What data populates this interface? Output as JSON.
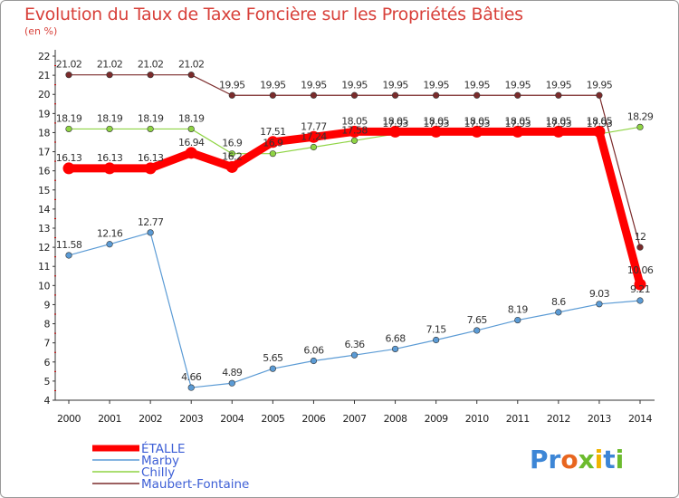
{
  "chart_data": {
    "type": "line",
    "title": "Evolution du Taux de Taxe Foncière sur les Propriétés Bâties",
    "subtitle": "(en %)",
    "xlabel": "",
    "ylabel": "",
    "x": [
      2000,
      2001,
      2002,
      2003,
      2004,
      2005,
      2006,
      2007,
      2008,
      2009,
      2010,
      2011,
      2012,
      2013,
      2014
    ],
    "ylim": [
      4,
      22
    ],
    "yticks": [
      4,
      5,
      6,
      7,
      8,
      9,
      10,
      11,
      12,
      13,
      14,
      15,
      16,
      17,
      18,
      19,
      20,
      21,
      22
    ],
    "series": [
      {
        "name": "ÉTALLE",
        "color": "#ff0000",
        "values": [
          16.13,
          16.13,
          16.13,
          16.94,
          16.2,
          17.51,
          17.77,
          18.05,
          18.05,
          18.05,
          18.05,
          18.05,
          18.05,
          18.05,
          10.06
        ],
        "labels": [
          "16.13",
          "16.13",
          "16.13",
          "16.94",
          "16.2",
          "17.51",
          "17.77",
          "18.05",
          "18.05",
          "18.05",
          "18.05",
          "18.05",
          "18.05",
          "18.05",
          "10.06"
        ]
      },
      {
        "name": "Marby",
        "color": "#5b9bd5",
        "values": [
          11.58,
          12.16,
          12.77,
          4.66,
          4.89,
          5.65,
          6.06,
          6.36,
          6.68,
          7.15,
          7.65,
          8.19,
          8.6,
          9.03,
          9.21
        ],
        "labels": [
          "11.58",
          "12.16",
          "12.77",
          "4.66",
          "4.89",
          "5.65",
          "6.06",
          "6.36",
          "6.68",
          "7.15",
          "7.65",
          "8.19",
          "8.6",
          "9.03",
          "9.21"
        ]
      },
      {
        "name": "Chilly",
        "color": "#8fd444",
        "values": [
          18.19,
          18.19,
          18.19,
          18.19,
          16.9,
          16.9,
          17.24,
          17.58,
          17.93,
          17.93,
          17.93,
          17.93,
          17.93,
          17.93,
          18.29
        ],
        "labels": [
          "18.19",
          "18.19",
          "18.19",
          "18.19",
          "16.9",
          "16.9",
          "17.24",
          "17.58",
          "17.93",
          "17.93",
          "17.93",
          "17.93",
          "17.93",
          "17.93",
          "18.29"
        ]
      },
      {
        "name": "Maubert-Fontaine",
        "color": "#7b2b2b",
        "values": [
          21.02,
          21.02,
          21.02,
          21.02,
          19.95,
          19.95,
          19.95,
          19.95,
          19.95,
          19.95,
          19.95,
          19.95,
          19.95,
          19.95,
          12
        ],
        "labels": [
          "21.02",
          "21.02",
          "21.02",
          "21.02",
          "19.95",
          "19.95",
          "19.95",
          "19.95",
          "19.95",
          "19.95",
          "19.95",
          "19.95",
          "19.95",
          "19.95",
          "12"
        ]
      }
    ],
    "legend": [
      "ÉTALLE",
      "Marby",
      "Chilly",
      "Maubert-Fontaine"
    ],
    "legend_position": "bottom-left",
    "grid": false
  },
  "brand": {
    "p1": "Pr",
    "p2": "o",
    "p3": "x",
    "p4": "i",
    "p5": "t",
    "p6": "i"
  }
}
